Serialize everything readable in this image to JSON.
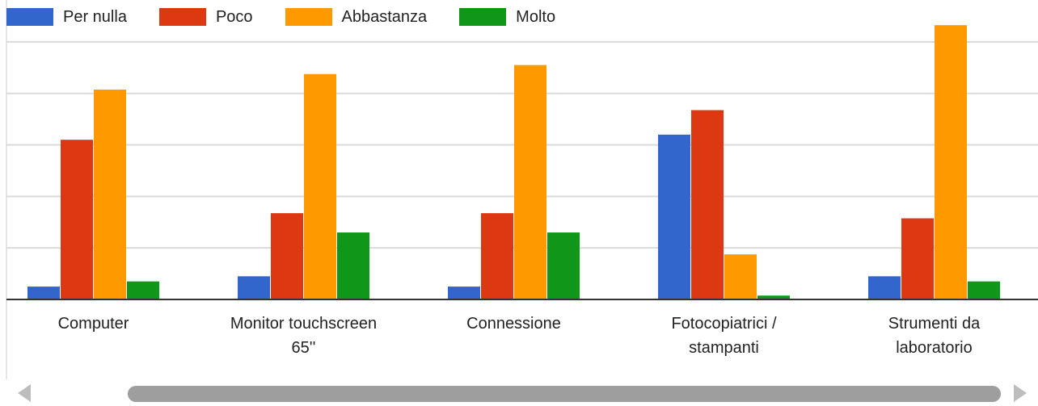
{
  "chart_data": {
    "type": "bar",
    "categories": [
      "Computer",
      "Monitor touchscreen 65''",
      "Connessione",
      "Fotocopiatrici / stampanti",
      "Strumenti da laboratorio"
    ],
    "category_lines": [
      [
        "Computer"
      ],
      [
        "Monitor touchscreen",
        "65''"
      ],
      [
        "Connessione"
      ],
      [
        "Fotocopiatrici /",
        "stampanti"
      ],
      [
        "Strumenti da",
        "laboratorio"
      ]
    ],
    "series": [
      {
        "name": "Per nulla",
        "color": "#3366cc",
        "values": [
          1.0,
          1.8,
          1.0,
          12.8,
          1.8
        ]
      },
      {
        "name": "Poco",
        "color": "#dc3912",
        "values": [
          12.4,
          6.7,
          6.7,
          14.7,
          6.3
        ]
      },
      {
        "name": "Abbastanza",
        "color": "#ff9900",
        "values": [
          16.3,
          17.5,
          18.2,
          3.5,
          21.3
        ]
      },
      {
        "name": "Molto",
        "color": "#109618",
        "values": [
          1.4,
          5.2,
          5.2,
          0.3,
          1.4
        ]
      }
    ],
    "ylim": [
      0,
      22
    ],
    "gridlines": [
      0,
      4,
      8,
      12,
      16,
      20
    ],
    "grid": true,
    "legend": "top-left"
  },
  "colors": {
    "gridline": "#d9d9d9",
    "baseline": "#333333",
    "scroll_thumb": "#9e9e9e",
    "scroll_arrow": "#bdbdbd"
  },
  "scrollbar": {
    "left_icon": "chevron-left-icon",
    "right_icon": "chevron-right-icon"
  }
}
